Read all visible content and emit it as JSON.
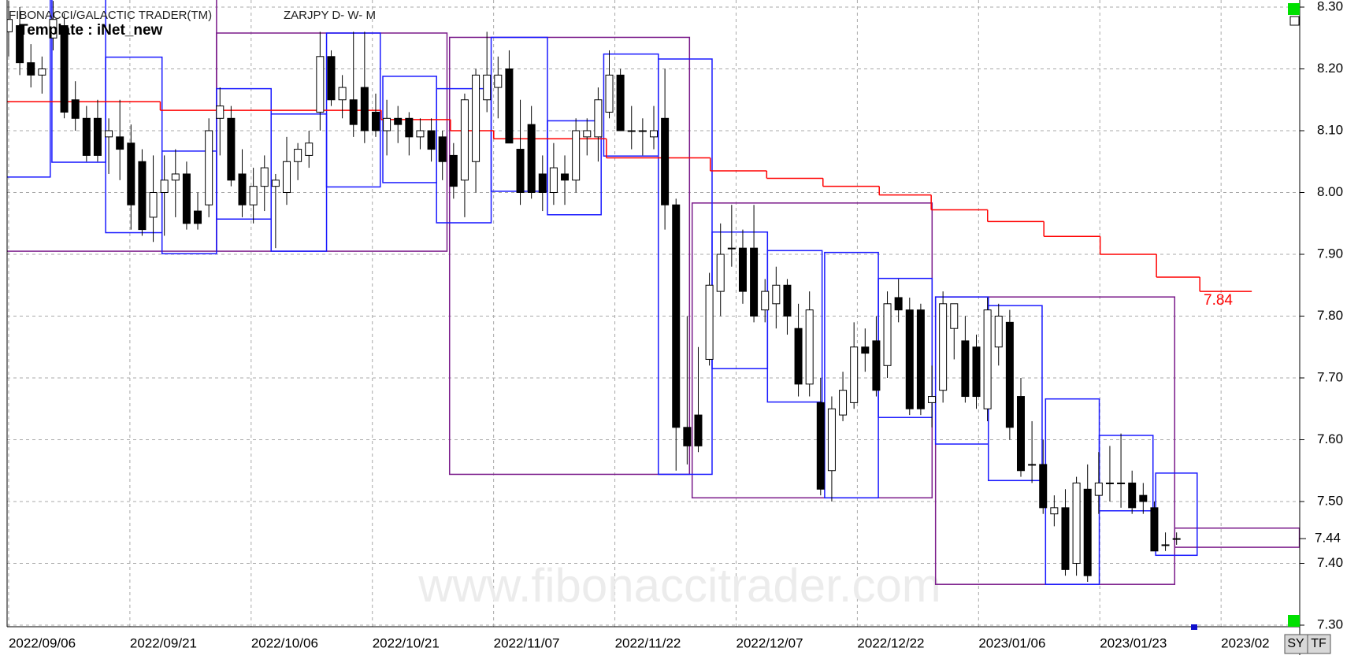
{
  "chart_data": {
    "type": "candlestick",
    "title": "FIBONACCI/GALACTIC TRADER(TM)",
    "subtitle": "ZARJPY D- W- M",
    "template": "Template : iNet_new",
    "watermark": "www.fibonaccitrader.com",
    "ylim": [
      7.3,
      8.3
    ],
    "yticks": [
      {
        "value": 7.3,
        "label": "7.30"
      },
      {
        "value": 7.4,
        "label": "7.40"
      },
      {
        "value": 7.5,
        "label": "7.50"
      },
      {
        "value": 7.6,
        "label": "7.60"
      },
      {
        "value": 7.7,
        "label": "7.70"
      },
      {
        "value": 7.8,
        "label": "7.80"
      },
      {
        "value": 7.9,
        "label": "7.90"
      },
      {
        "value": 8.0,
        "label": "8.00"
      },
      {
        "value": 8.1,
        "label": "8.10"
      },
      {
        "value": 8.2,
        "label": "8.20"
      },
      {
        "value": 8.3,
        "label": "8.30"
      }
    ],
    "xlim": [
      -0.14,
      116.07
    ],
    "xticks": [
      {
        "value": 0,
        "label": "2022/09/06"
      },
      {
        "value": 10.9,
        "label": "2022/09/21"
      },
      {
        "value": 21.8,
        "label": "2022/10/06"
      },
      {
        "value": 32.7,
        "label": "2022/10/21"
      },
      {
        "value": 43.6,
        "label": "2022/11/07"
      },
      {
        "value": 54.5,
        "label": "2022/11/22"
      },
      {
        "value": 65.4,
        "label": "2022/12/07"
      },
      {
        "value": 76.3,
        "label": "2022/12/22"
      },
      {
        "value": 87.2,
        "label": "2023/01/06"
      },
      {
        "value": 98.1,
        "label": "2023/01/23"
      },
      {
        "value": 109,
        "label": "2023/02"
      }
    ],
    "grid": true,
    "up_color": "#ffffff",
    "down_color": "#000000",
    "candles": [
      [
        8.26,
        8.31,
        8.22,
        8.28
      ],
      [
        8.27,
        8.3,
        8.19,
        8.21
      ],
      [
        8.21,
        8.24,
        8.17,
        8.19
      ],
      [
        8.19,
        8.22,
        8.16,
        8.2
      ],
      [
        8.25,
        8.31,
        8.23,
        8.28
      ],
      [
        8.27,
        8.29,
        8.12,
        8.13
      ],
      [
        8.15,
        8.18,
        8.1,
        8.12
      ],
      [
        8.12,
        8.14,
        8.05,
        8.06
      ],
      [
        8.12,
        8.15,
        8.05,
        8.06
      ],
      [
        8.09,
        8.12,
        8.03,
        8.1
      ],
      [
        8.09,
        8.15,
        8.02,
        8.07
      ],
      [
        8.08,
        8.11,
        7.94,
        7.98
      ],
      [
        8.05,
        8.07,
        7.93,
        7.94
      ],
      [
        7.96,
        8.06,
        7.92,
        8.0
      ],
      [
        8.0,
        8.06,
        7.93,
        8.02
      ],
      [
        8.02,
        8.07,
        7.96,
        8.03
      ],
      [
        8.03,
        8.05,
        7.94,
        7.95
      ],
      [
        7.97,
        8.0,
        7.94,
        7.95
      ],
      [
        7.98,
        8.12,
        7.96,
        8.1
      ],
      [
        8.12,
        8.17,
        8.06,
        8.14
      ],
      [
        8.12,
        8.14,
        8.01,
        8.02
      ],
      [
        8.03,
        8.07,
        7.96,
        7.98
      ],
      [
        7.98,
        8.04,
        7.95,
        8.01
      ],
      [
        8.01,
        8.06,
        7.97,
        8.04
      ],
      [
        8.01,
        8.03,
        7.91,
        8.02
      ],
      [
        8.0,
        8.09,
        7.98,
        8.05
      ],
      [
        8.05,
        8.08,
        8.02,
        8.07
      ],
      [
        8.06,
        8.1,
        8.04,
        8.08
      ],
      [
        8.13,
        8.26,
        8.1,
        8.22
      ],
      [
        8.22,
        8.23,
        8.14,
        8.15
      ],
      [
        8.15,
        8.19,
        8.12,
        8.17
      ],
      [
        8.15,
        8.26,
        8.09,
        8.11
      ],
      [
        8.17,
        8.26,
        8.08,
        8.1
      ],
      [
        8.13,
        8.16,
        8.09,
        8.1
      ],
      [
        8.1,
        8.15,
        8.06,
        8.12
      ],
      [
        8.12,
        8.14,
        8.08,
        8.11
      ],
      [
        8.12,
        8.13,
        8.06,
        8.09
      ],
      [
        8.09,
        8.12,
        8.07,
        8.1
      ],
      [
        8.1,
        8.12,
        8.05,
        8.07
      ],
      [
        8.09,
        8.1,
        8.02,
        8.05
      ],
      [
        8.06,
        8.08,
        7.99,
        8.01
      ],
      [
        8.02,
        8.16,
        7.96,
        8.15
      ],
      [
        8.05,
        8.2,
        8.0,
        8.19
      ],
      [
        8.15,
        8.26,
        8.13,
        8.19
      ],
      [
        8.17,
        8.22,
        8.12,
        8.19
      ],
      [
        8.2,
        8.23,
        8.08,
        8.08
      ],
      [
        8.07,
        8.15,
        7.98,
        8.0
      ],
      [
        8.11,
        8.14,
        7.99,
        8.0
      ],
      [
        8.03,
        8.06,
        7.97,
        8.0
      ],
      [
        8.0,
        8.08,
        7.98,
        8.04
      ],
      [
        8.03,
        8.06,
        7.98,
        8.02
      ],
      [
        8.02,
        8.12,
        8.0,
        8.1
      ],
      [
        8.09,
        8.12,
        8.06,
        8.1
      ],
      [
        8.09,
        8.17,
        8.05,
        8.15
      ],
      [
        8.13,
        8.23,
        8.12,
        8.19
      ],
      [
        8.19,
        8.2,
        8.1,
        8.1
      ],
      [
        8.1,
        8.14,
        8.07,
        8.1
      ],
      [
        8.1,
        8.12,
        8.06,
        8.1
      ],
      [
        8.09,
        8.14,
        8.07,
        8.1
      ],
      [
        8.12,
        8.2,
        7.94,
        7.98
      ],
      [
        7.98,
        7.99,
        7.55,
        7.62
      ],
      [
        7.62,
        7.8,
        7.56,
        7.59
      ],
      [
        7.64,
        7.75,
        7.58,
        7.59
      ],
      [
        7.73,
        7.87,
        7.72,
        7.85
      ],
      [
        7.84,
        7.95,
        7.8,
        7.9
      ],
      [
        7.91,
        7.98,
        7.88,
        7.91
      ],
      [
        7.91,
        7.94,
        7.82,
        7.84
      ],
      [
        7.91,
        7.98,
        7.79,
        7.8
      ],
      [
        7.81,
        7.86,
        7.79,
        7.84
      ],
      [
        7.82,
        7.88,
        7.78,
        7.85
      ],
      [
        7.85,
        7.86,
        7.77,
        7.8
      ],
      [
        7.78,
        7.82,
        7.67,
        7.69
      ],
      [
        7.69,
        7.84,
        7.67,
        7.81
      ],
      [
        7.66,
        7.7,
        7.51,
        7.52
      ],
      [
        7.55,
        7.67,
        7.5,
        7.65
      ],
      [
        7.64,
        7.71,
        7.63,
        7.68
      ],
      [
        7.66,
        7.79,
        7.65,
        7.75
      ],
      [
        7.75,
        7.78,
        7.71,
        7.74
      ],
      [
        7.76,
        7.8,
        7.67,
        7.68
      ],
      [
        7.72,
        7.84,
        7.7,
        7.82
      ],
      [
        7.83,
        7.86,
        7.79,
        7.81
      ],
      [
        7.81,
        7.83,
        7.64,
        7.65
      ],
      [
        7.81,
        7.82,
        7.64,
        7.65
      ],
      [
        7.66,
        7.72,
        7.62,
        7.67
      ],
      [
        7.68,
        7.84,
        7.66,
        7.82
      ],
      [
        7.78,
        7.82,
        7.73,
        7.82
      ],
      [
        7.76,
        7.8,
        7.66,
        7.67
      ],
      [
        7.75,
        7.77,
        7.65,
        7.67
      ],
      [
        7.65,
        7.83,
        7.63,
        7.81
      ],
      [
        7.75,
        7.82,
        7.72,
        7.8
      ],
      [
        7.79,
        7.81,
        7.6,
        7.62
      ],
      [
        7.67,
        7.7,
        7.54,
        7.55
      ],
      [
        7.56,
        7.63,
        7.53,
        7.56
      ],
      [
        7.56,
        7.6,
        7.48,
        7.49
      ],
      [
        7.48,
        7.51,
        7.46,
        7.49
      ],
      [
        7.49,
        7.52,
        7.38,
        7.39
      ],
      [
        7.4,
        7.54,
        7.38,
        7.53
      ],
      [
        7.52,
        7.56,
        7.37,
        7.38
      ],
      [
        7.51,
        7.58,
        7.48,
        7.53
      ],
      [
        7.53,
        7.59,
        7.5,
        7.53
      ],
      [
        7.53,
        7.61,
        7.49,
        7.53
      ],
      [
        7.53,
        7.55,
        7.48,
        7.49
      ],
      [
        7.51,
        7.53,
        7.48,
        7.5
      ],
      [
        7.49,
        7.5,
        7.42,
        7.42
      ],
      [
        7.43,
        7.45,
        7.42,
        7.43
      ],
      [
        7.44,
        7.45,
        7.43,
        7.44
      ]
    ],
    "monthly_boxes": {
      "color": "#7a1a8a",
      "boxes": [
        [
          -0.78,
          18.69,
          7.905,
          8.35
        ],
        [
          18.69,
          39.41,
          7.905,
          8.258
        ],
        [
          39.64,
          61.21,
          7.544,
          8.251
        ],
        [
          61.45,
          83.02,
          7.506,
          7.983
        ],
        [
          83.33,
          104.83,
          7.366,
          7.831
        ],
        [
          104.83,
          116.04,
          7.426,
          7.457
        ]
      ]
    },
    "weekly_boxes": {
      "color": "#1a1aff",
      "boxes": [
        [
          -0.78,
          3.74,
          8.025,
          8.35
        ],
        [
          3.89,
          8.72,
          8.049,
          8.35
        ],
        [
          8.72,
          13.79,
          7.935,
          8.219
        ],
        [
          13.79,
          18.69,
          7.901,
          8.067
        ],
        [
          18.69,
          23.6,
          7.957,
          8.168
        ],
        [
          23.6,
          28.58,
          7.905,
          8.127
        ],
        [
          28.58,
          33.41,
          8.009,
          8.258
        ],
        [
          33.64,
          38.47,
          8.016,
          8.188
        ],
        [
          38.47,
          43.38,
          7.951,
          8.168
        ],
        [
          43.38,
          48.44,
          8.002,
          8.251
        ],
        [
          48.44,
          53.27,
          7.964,
          8.116
        ],
        [
          53.5,
          58.41,
          8.059,
          8.224
        ],
        [
          58.41,
          63.24,
          7.544,
          8.216
        ],
        [
          63.24,
          68.22,
          7.715,
          7.936
        ],
        [
          68.22,
          73.13,
          7.661,
          7.906
        ],
        [
          73.36,
          78.19,
          7.506,
          7.903
        ],
        [
          78.19,
          83.02,
          7.636,
          7.861
        ],
        [
          83.33,
          88.08,
          7.593,
          7.831
        ],
        [
          88.08,
          92.91,
          7.534,
          7.817
        ],
        [
          93.22,
          98.05,
          7.366,
          7.666
        ],
        [
          98.05,
          102.88,
          7.485,
          7.607
        ],
        [
          103.12,
          106.85,
          7.413,
          7.546
        ]
      ]
    },
    "red_line": {
      "color": "#ff0000",
      "x_start": [
        -0.78,
        13.63,
        33.49,
        39.72,
        43.61,
        53.74,
        63.08,
        68.15,
        73.21,
        78.27,
        82.94,
        88.01,
        93.07,
        98.13,
        103.19,
        107.09
      ],
      "x_end": [
        13.63,
        33.49,
        39.72,
        43.61,
        53.74,
        63.08,
        68.15,
        73.21,
        78.27,
        82.94,
        88.01,
        93.07,
        98.13,
        103.19,
        107.09,
        111.76
      ],
      "values": [
        8.147,
        8.133,
        8.118,
        8.1,
        8.087,
        8.056,
        8.035,
        8.023,
        8.01,
        7.996,
        7.972,
        7.953,
        7.929,
        7.9,
        7.863,
        7.84
      ]
    }
  },
  "toolbar": {
    "buttons": [
      "SY",
      "TF"
    ]
  }
}
